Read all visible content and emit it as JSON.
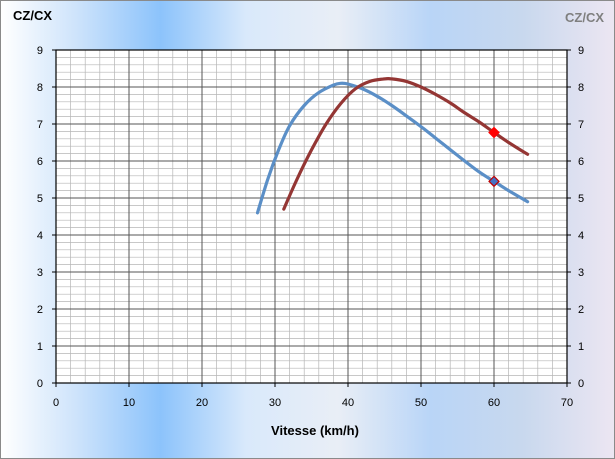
{
  "chart_data": {
    "type": "line",
    "title_left": "CZ/CX",
    "title_right": "CZ/CX",
    "xlabel": "Vitesse (km/h)",
    "xlim": [
      0,
      70
    ],
    "ylim": [
      0,
      9
    ],
    "xticks": [
      0,
      10,
      20,
      30,
      40,
      50,
      60,
      70
    ],
    "yticks": [
      0,
      1,
      2,
      3,
      4,
      5,
      6,
      7,
      8,
      9
    ],
    "grid": true,
    "series": [
      {
        "color": "#5b8fc7",
        "x": [
          27.6,
          29,
          30.5,
          32,
          34,
          36,
          38,
          39,
          40,
          42,
          44,
          46,
          48,
          50,
          52,
          55,
          58,
          60,
          62,
          64.6
        ],
        "y": [
          4.6,
          5.5,
          6.3,
          6.95,
          7.5,
          7.85,
          8.05,
          8.1,
          8.08,
          7.95,
          7.75,
          7.5,
          7.22,
          6.93,
          6.62,
          6.15,
          5.7,
          5.45,
          5.2,
          4.9
        ],
        "marker": {
          "x": 60,
          "y": 5.45,
          "shape": "diamond",
          "fill": "#4472c4",
          "stroke": "#c00000"
        }
      },
      {
        "color": "#943634",
        "x": [
          31.2,
          33,
          35,
          37,
          39,
          41,
          43,
          45,
          46,
          48,
          50,
          52,
          54,
          56,
          58,
          60,
          62,
          64.6
        ],
        "y": [
          4.7,
          5.5,
          6.3,
          7.0,
          7.55,
          7.95,
          8.15,
          8.22,
          8.22,
          8.15,
          8.0,
          7.8,
          7.57,
          7.3,
          7.05,
          6.77,
          6.5,
          6.18
        ],
        "marker": {
          "x": 60,
          "y": 6.77,
          "shape": "diamond",
          "fill": "#ff0000",
          "stroke": "#ff0000"
        }
      }
    ]
  }
}
